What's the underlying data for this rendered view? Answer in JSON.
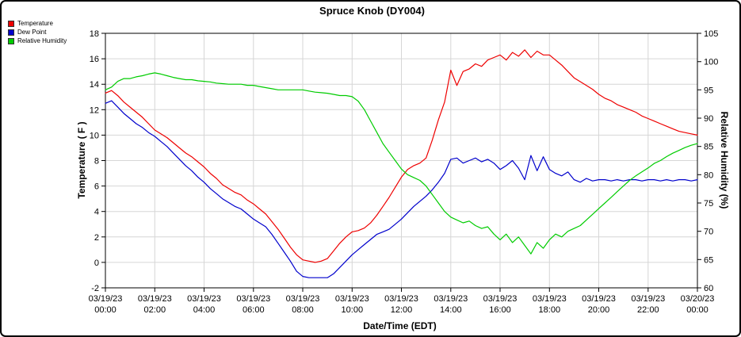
{
  "title": "Spruce Knob (DY004)",
  "legend": [
    {
      "label": "Temperature",
      "color": "#ee0000"
    },
    {
      "label": "Dew Point",
      "color": "#0000cc"
    },
    {
      "label": "Relative Humidity",
      "color": "#00cc00"
    }
  ],
  "chart_data": {
    "type": "line",
    "title": "Spruce Knob (DY004)",
    "xlabel": "Date/Time (EDT)",
    "ylabel_left": "Temperature ( F )",
    "ylabel_right": "Relative Humidity (%)",
    "grid": true,
    "grid_color": "#d6d6d6",
    "legend_position": "top-left",
    "x_max_hours": 24,
    "y_left": {
      "min": -2,
      "max": 18,
      "ticks": [
        18,
        16,
        14,
        12,
        10,
        8,
        6,
        4,
        2,
        0,
        -2
      ]
    },
    "y_right": {
      "min": 60,
      "max": 105,
      "ticks": [
        105,
        100,
        95,
        90,
        85,
        80,
        75,
        70,
        65,
        60
      ]
    },
    "x_ticks": [
      {
        "hour": 0,
        "date": "03/19/23",
        "time": "00:00"
      },
      {
        "hour": 2,
        "date": "03/19/23",
        "time": "02:00"
      },
      {
        "hour": 4,
        "date": "03/19/23",
        "time": "04:00"
      },
      {
        "hour": 6,
        "date": "03/19/23",
        "time": "06:00"
      },
      {
        "hour": 8,
        "date": "03/19/23",
        "time": "08:00"
      },
      {
        "hour": 10,
        "date": "03/19/23",
        "time": "10:00"
      },
      {
        "hour": 12,
        "date": "03/19/23",
        "time": "12:00"
      },
      {
        "hour": 14,
        "date": "03/19/23",
        "time": "14:00"
      },
      {
        "hour": 16,
        "date": "03/19/23",
        "time": "16:00"
      },
      {
        "hour": 18,
        "date": "03/19/23",
        "time": "18:00"
      },
      {
        "hour": 20,
        "date": "03/19/23",
        "time": "20:00"
      },
      {
        "hour": 22,
        "date": "03/19/23",
        "time": "22:00"
      },
      {
        "hour": 24,
        "date": "03/20/23",
        "time": "00:00"
      }
    ],
    "series": [
      {
        "name": "Temperature",
        "axis": "left",
        "color": "#ee0000",
        "x_step_hours": 0.25,
        "values": [
          13.3,
          13.5,
          13.1,
          12.6,
          12.2,
          11.8,
          11.4,
          10.9,
          10.4,
          10.1,
          9.8,
          9.4,
          9.0,
          8.6,
          8.3,
          7.9,
          7.5,
          7.0,
          6.6,
          6.1,
          5.8,
          5.5,
          5.3,
          4.9,
          4.6,
          4.2,
          3.8,
          3.2,
          2.6,
          1.9,
          1.2,
          0.6,
          0.2,
          0.1,
          0.0,
          0.1,
          0.3,
          0.9,
          1.5,
          2.0,
          2.4,
          2.5,
          2.7,
          3.1,
          3.7,
          4.4,
          5.1,
          5.9,
          6.7,
          7.3,
          7.6,
          7.8,
          8.2,
          9.6,
          11.2,
          12.6,
          15.1,
          13.9,
          15.0,
          15.2,
          15.6,
          15.4,
          15.9,
          16.1,
          16.3,
          15.9,
          16.5,
          16.2,
          16.7,
          16.1,
          16.6,
          16.3,
          16.3,
          15.9,
          15.5,
          15.0,
          14.5,
          14.2,
          13.9,
          13.6,
          13.2,
          12.9,
          12.7,
          12.4,
          12.2,
          12.0,
          11.8,
          11.5,
          11.3,
          11.1,
          10.9,
          10.7,
          10.5,
          10.3,
          10.2,
          10.1,
          10.0
        ]
      },
      {
        "name": "Dew Point",
        "axis": "left",
        "color": "#0000cc",
        "x_step_hours": 0.25,
        "values": [
          12.5,
          12.7,
          12.2,
          11.7,
          11.3,
          10.9,
          10.6,
          10.2,
          9.9,
          9.5,
          9.1,
          8.6,
          8.1,
          7.6,
          7.2,
          6.7,
          6.3,
          5.8,
          5.4,
          5.0,
          4.7,
          4.4,
          4.2,
          3.8,
          3.4,
          3.1,
          2.8,
          2.2,
          1.5,
          0.8,
          0.1,
          -0.7,
          -1.1,
          -1.2,
          -1.2,
          -1.2,
          -1.2,
          -0.9,
          -0.4,
          0.1,
          0.6,
          1.0,
          1.4,
          1.8,
          2.2,
          2.4,
          2.6,
          3.0,
          3.4,
          3.9,
          4.4,
          4.8,
          5.2,
          5.7,
          6.3,
          7.0,
          8.1,
          8.2,
          7.8,
          8.0,
          8.2,
          7.9,
          8.1,
          7.8,
          7.3,
          7.6,
          8.0,
          7.4,
          6.5,
          8.4,
          7.2,
          8.3,
          7.3,
          7.0,
          6.8,
          7.1,
          6.5,
          6.3,
          6.6,
          6.4,
          6.5,
          6.5,
          6.4,
          6.5,
          6.4,
          6.5,
          6.5,
          6.4,
          6.5,
          6.5,
          6.4,
          6.5,
          6.4,
          6.5,
          6.5,
          6.4,
          6.5
        ]
      },
      {
        "name": "Relative Humidity",
        "axis": "right",
        "color": "#00cc00",
        "x_step_hours": 0.25,
        "values": [
          95.0,
          95.5,
          96.5,
          97.0,
          97.0,
          97.3,
          97.5,
          97.8,
          98.0,
          97.8,
          97.5,
          97.2,
          97.0,
          96.8,
          96.8,
          96.6,
          96.5,
          96.4,
          96.2,
          96.1,
          96.0,
          96.0,
          96.0,
          95.8,
          95.8,
          95.6,
          95.4,
          95.2,
          95.0,
          95.0,
          95.0,
          95.0,
          95.0,
          94.8,
          94.6,
          94.5,
          94.4,
          94.2,
          94.0,
          94.0,
          93.8,
          93.0,
          91.5,
          89.5,
          87.5,
          85.5,
          84.0,
          82.5,
          81.0,
          80.0,
          79.5,
          79.0,
          78.0,
          76.5,
          75.0,
          73.5,
          72.5,
          72.0,
          71.5,
          71.8,
          71.0,
          70.5,
          70.8,
          69.5,
          68.5,
          69.5,
          68.0,
          69.0,
          67.5,
          66.0,
          68.0,
          67.0,
          68.5,
          69.5,
          69.0,
          70.0,
          70.5,
          71.0,
          72.0,
          73.0,
          74.0,
          75.0,
          76.0,
          77.0,
          78.0,
          79.0,
          79.8,
          80.5,
          81.2,
          82.0,
          82.5,
          83.2,
          83.8,
          84.3,
          84.8,
          85.2,
          85.5
        ]
      }
    ]
  }
}
